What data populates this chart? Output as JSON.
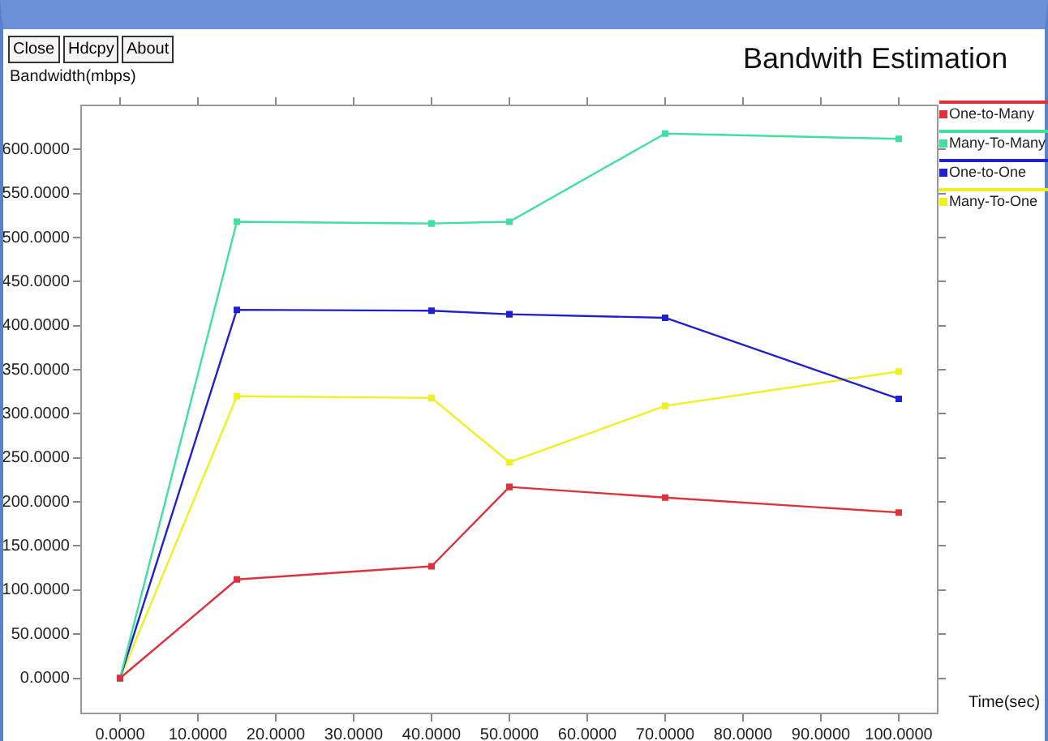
{
  "chart_data": {
    "type": "line",
    "title": "Bandwith Estimation",
    "xlabel": "Time(sec)",
    "ylabel": "Bandwidth(mbps)",
    "annotations": [
      "Close",
      "Hdcpy",
      "About"
    ],
    "x": [
      0,
      15,
      40,
      50,
      70,
      100
    ],
    "series": [
      {
        "name": "One-to-Many",
        "color": "#e0303a",
        "values": [
          0,
          112,
          127,
          217,
          205,
          188
        ]
      },
      {
        "name": "Many-To-Many",
        "color": "#40e0a0",
        "values": [
          0,
          518,
          516,
          518,
          618,
          612
        ]
      },
      {
        "name": "One-to-One",
        "color": "#2020d0",
        "values": [
          0,
          418,
          417,
          413,
          409,
          317
        ]
      },
      {
        "name": "Many-To-One",
        "color": "#f0f020",
        "values": [
          0,
          320,
          318,
          245,
          309,
          348
        ]
      }
    ],
    "xlim": [
      -5,
      105
    ],
    "xticks": [
      {
        "value": 0,
        "label": "0.0000"
      },
      {
        "value": 10,
        "label": "10.0000"
      },
      {
        "value": 20,
        "label": "20.0000"
      },
      {
        "value": 30,
        "label": "30.0000"
      },
      {
        "value": 40,
        "label": "40.0000"
      },
      {
        "value": 50,
        "label": "50.0000"
      },
      {
        "value": 60,
        "label": "60.0000"
      },
      {
        "value": 70,
        "label": "70.0000"
      },
      {
        "value": 80,
        "label": "80.0000"
      },
      {
        "value": 90,
        "label": "90.0000"
      },
      {
        "value": 100,
        "label": "100.0000"
      }
    ],
    "ylim": [
      -40,
      650
    ],
    "yticks": [
      {
        "value": 0,
        "label": "0.0000"
      },
      {
        "value": 50,
        "label": "50.0000"
      },
      {
        "value": 100,
        "label": "100.0000"
      },
      {
        "value": 150,
        "label": "150.0000"
      },
      {
        "value": 200,
        "label": "200.0000"
      },
      {
        "value": 250,
        "label": "250.0000"
      },
      {
        "value": 300,
        "label": "300.0000"
      },
      {
        "value": 350,
        "label": "350.0000"
      },
      {
        "value": 400,
        "label": "400.0000"
      },
      {
        "value": 450,
        "label": "450.0000"
      },
      {
        "value": 500,
        "label": "500.0000"
      },
      {
        "value": 550,
        "label": "550.0000"
      },
      {
        "value": 600,
        "label": "600.0000"
      }
    ],
    "grid": false,
    "legend": "top right",
    "marker": "square",
    "line_style": "solid"
  }
}
